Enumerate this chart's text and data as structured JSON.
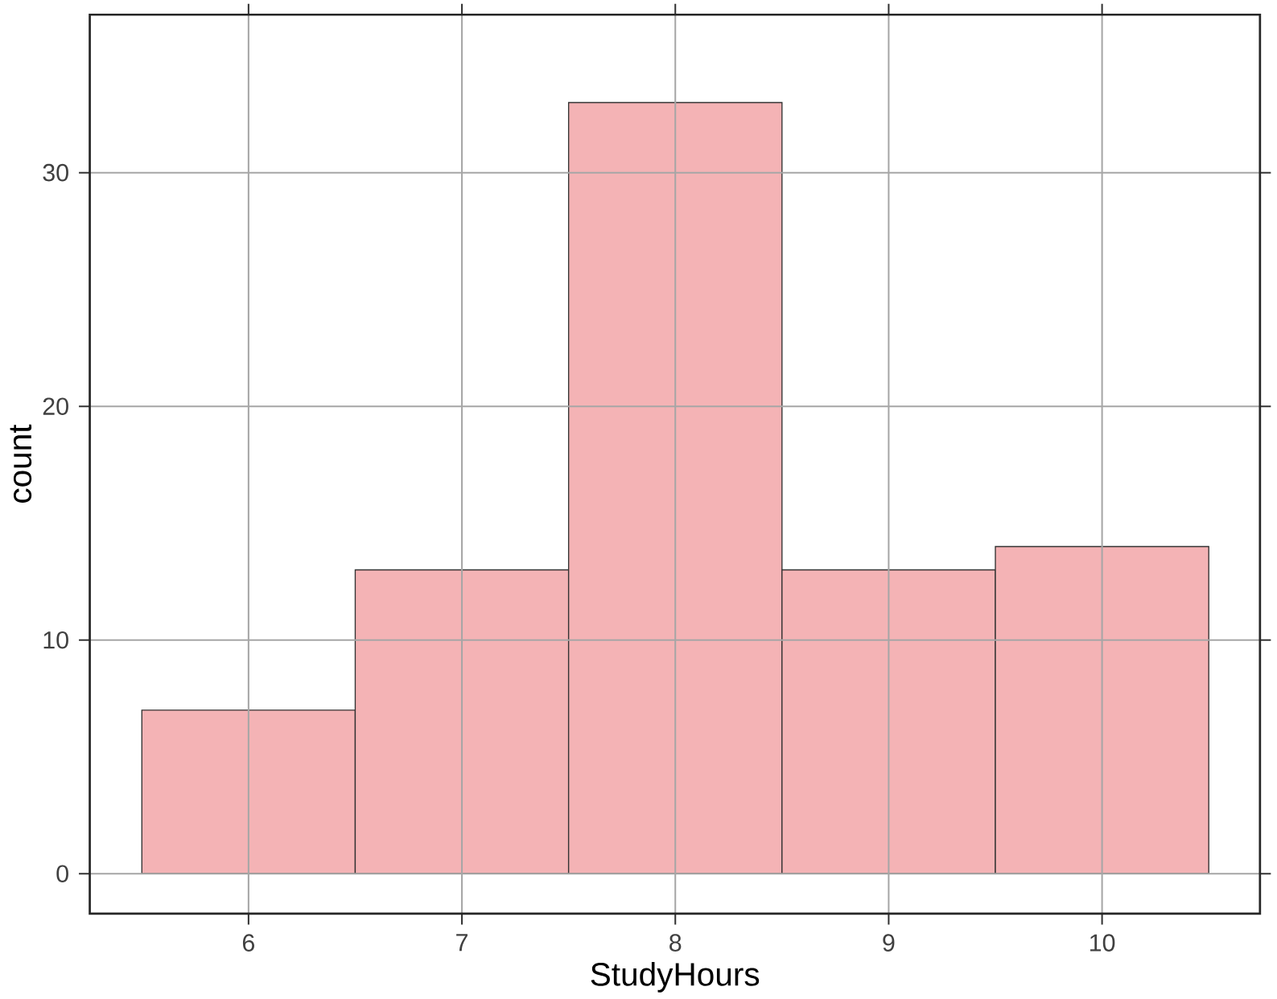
{
  "chart_data": {
    "type": "histogram",
    "xlabel": "StudyHours",
    "ylabel": "count",
    "bins": [
      5.5,
      6.5,
      7.5,
      8.5,
      9.5,
      10.5
    ],
    "values": [
      7,
      13,
      33,
      13,
      14
    ],
    "color": "#f4b3b5",
    "xlim": [
      5.256,
      10.74
    ],
    "xticks": [
      6,
      7,
      8,
      9,
      10
    ],
    "ylim": [
      -1.71,
      36.76
    ],
    "yticks": [
      0,
      10,
      20,
      30
    ],
    "grid": true
  }
}
